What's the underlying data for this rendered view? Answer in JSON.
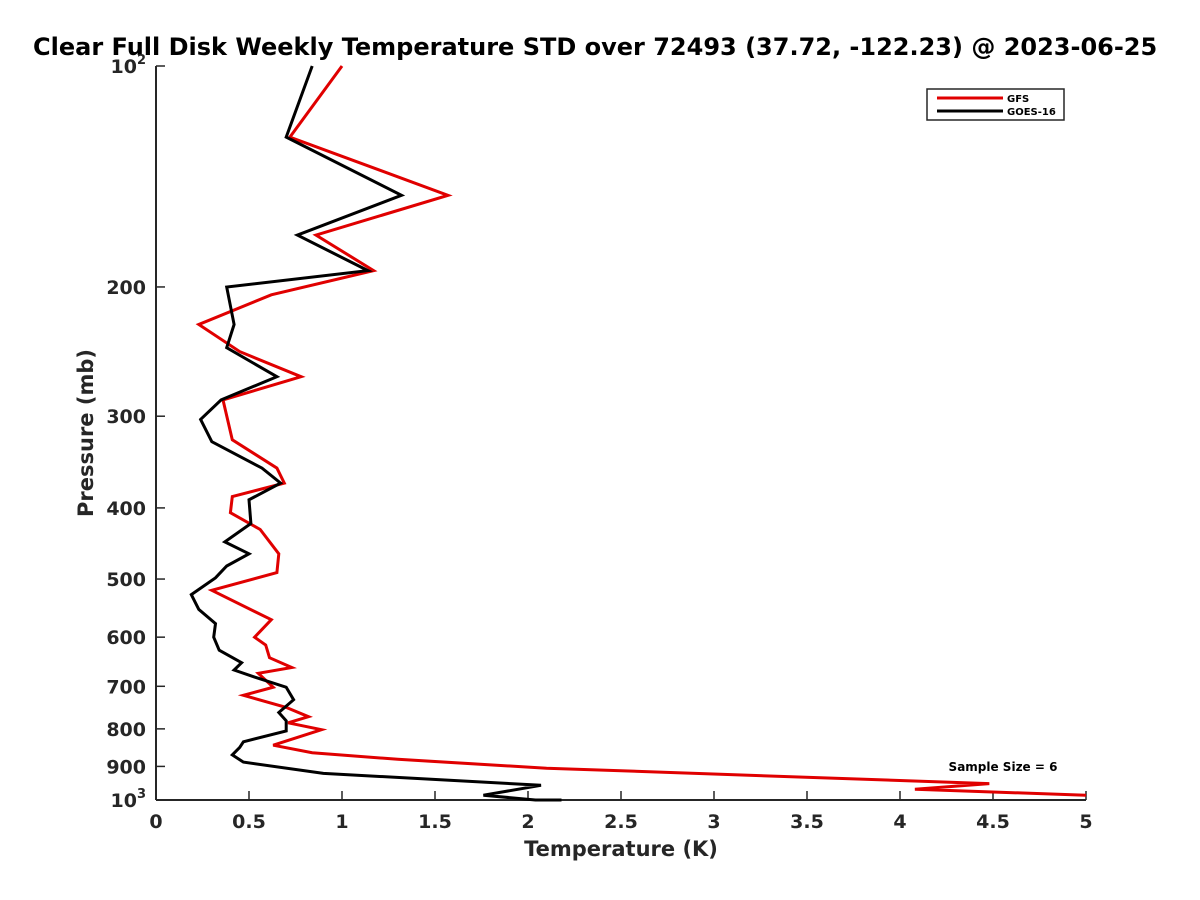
{
  "chart_data": {
    "type": "line",
    "title": "Clear Full Disk Weekly Temperature STD over 72493 (37.72, -122.23) @ 2023-06-25",
    "xlabel": "Temperature (K)",
    "ylabel": "Pressure (mb)",
    "xlim": [
      0,
      5
    ],
    "ylim": [
      100,
      1000
    ],
    "y_scale": "log",
    "y_reversed": true,
    "grid": false,
    "legend_position": "top-right",
    "x_ticks": [
      "0",
      "0.5",
      "1",
      "1.5",
      "2",
      "2.5",
      "3",
      "3.5",
      "4",
      "4.5",
      "5"
    ],
    "y_ticks": [
      {
        "value": 100,
        "base": "10",
        "exp": "2"
      },
      {
        "value": 200,
        "label": "200"
      },
      {
        "value": 300,
        "label": "300"
      },
      {
        "value": 400,
        "label": "400"
      },
      {
        "value": 500,
        "label": "500"
      },
      {
        "value": 600,
        "label": "600"
      },
      {
        "value": 700,
        "label": "700"
      },
      {
        "value": 800,
        "label": "800"
      },
      {
        "value": 900,
        "label": "900"
      },
      {
        "value": 1000,
        "base": "10",
        "exp": "3"
      }
    ],
    "annotation": "Sample Size = 6",
    "series": [
      {
        "name": "GFS",
        "color": "#e00000",
        "points": [
          [
            1.0,
            100
          ],
          [
            0.72,
            125
          ],
          [
            1.57,
            150
          ],
          [
            0.86,
            170
          ],
          [
            1.17,
            190
          ],
          [
            0.62,
            205
          ],
          [
            0.23,
            225
          ],
          [
            0.45,
            245
          ],
          [
            0.78,
            265
          ],
          [
            0.36,
            285
          ],
          [
            0.41,
            323
          ],
          [
            0.65,
            353
          ],
          [
            0.69,
            370
          ],
          [
            0.41,
            386
          ],
          [
            0.4,
            406
          ],
          [
            0.56,
            428
          ],
          [
            0.66,
            462
          ],
          [
            0.65,
            490
          ],
          [
            0.3,
            518
          ],
          [
            0.62,
            568
          ],
          [
            0.53,
            600
          ],
          [
            0.59,
            615
          ],
          [
            0.61,
            640
          ],
          [
            0.73,
            660
          ],
          [
            0.55,
            672
          ],
          [
            0.63,
            702
          ],
          [
            0.47,
            720
          ],
          [
            0.7,
            748
          ],
          [
            0.82,
            770
          ],
          [
            0.71,
            785
          ],
          [
            0.89,
            802
          ],
          [
            0.63,
            842
          ],
          [
            0.84,
            862
          ],
          [
            1.3,
            880
          ],
          [
            2.1,
            905
          ],
          [
            4.48,
            950
          ],
          [
            4.08,
            967
          ],
          [
            5.0,
            985
          ]
        ]
      },
      {
        "name": "GOES-16",
        "color": "#000000",
        "points": [
          [
            0.84,
            100
          ],
          [
            0.7,
            125
          ],
          [
            1.32,
            150
          ],
          [
            0.76,
            170
          ],
          [
            1.14,
            190
          ],
          [
            0.38,
            200
          ],
          [
            0.42,
            225
          ],
          [
            0.38,
            242
          ],
          [
            0.65,
            265
          ],
          [
            0.35,
            285
          ],
          [
            0.24,
            303
          ],
          [
            0.3,
            325
          ],
          [
            0.57,
            353
          ],
          [
            0.67,
            370
          ],
          [
            0.5,
            390
          ],
          [
            0.51,
            420
          ],
          [
            0.37,
            445
          ],
          [
            0.5,
            462
          ],
          [
            0.38,
            480
          ],
          [
            0.32,
            498
          ],
          [
            0.19,
            525
          ],
          [
            0.23,
            550
          ],
          [
            0.32,
            575
          ],
          [
            0.31,
            600
          ],
          [
            0.34,
            625
          ],
          [
            0.46,
            650
          ],
          [
            0.42,
            665
          ],
          [
            0.53,
            680
          ],
          [
            0.7,
            702
          ],
          [
            0.74,
            730
          ],
          [
            0.66,
            760
          ],
          [
            0.7,
            780
          ],
          [
            0.7,
            805
          ],
          [
            0.47,
            833
          ],
          [
            0.45,
            848
          ],
          [
            0.41,
            868
          ],
          [
            0.47,
            888
          ],
          [
            0.9,
            920
          ],
          [
            2.07,
            955
          ],
          [
            1.76,
            985
          ],
          [
            2.04,
            1000
          ],
          [
            2.18,
            1000
          ]
        ]
      }
    ]
  }
}
